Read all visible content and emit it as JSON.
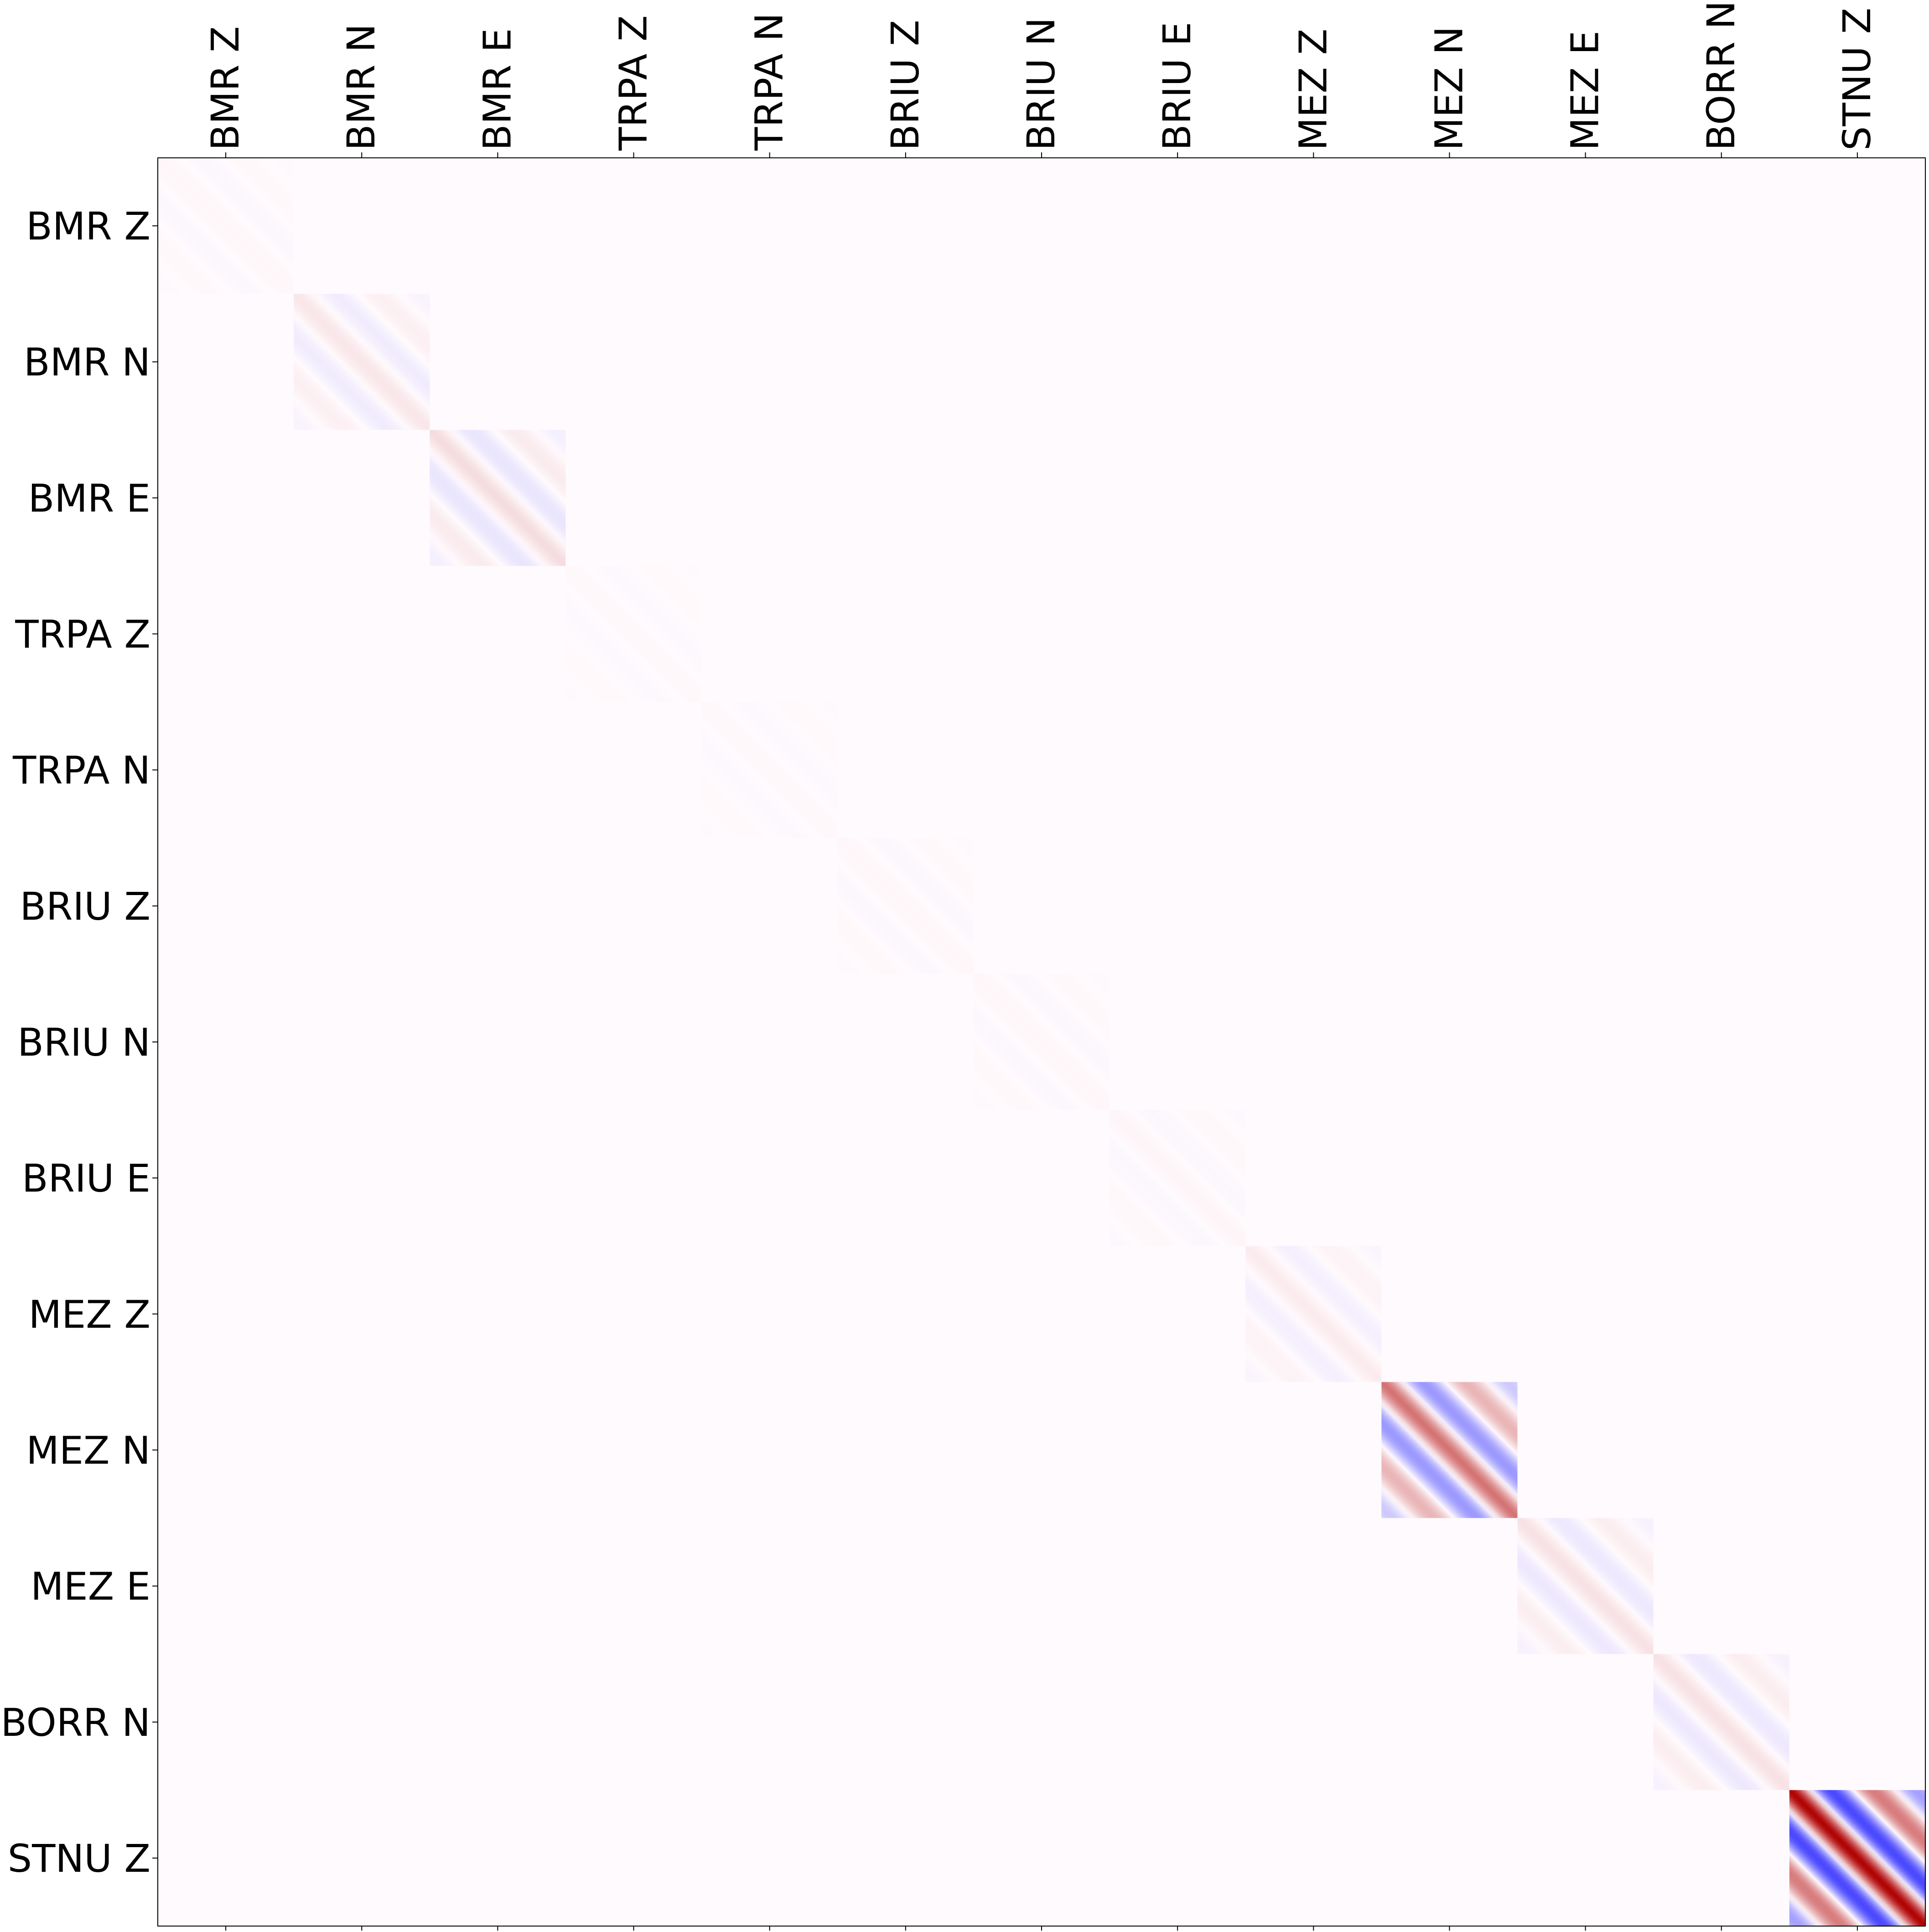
{
  "chart_data": {
    "type": "heatmap",
    "title": "",
    "xlabel": "",
    "ylabel": "",
    "x_tick_position": "top",
    "x_tick_rotation_deg": 90,
    "colormap": "seismic",
    "colors": {
      "negative": "#0000ff",
      "zero": "#fffafd",
      "positive": "#b00000",
      "axes_border": "#000000"
    },
    "labels": [
      "BMR Z",
      "BMR N",
      "BMR E",
      "TRPA Z",
      "TRPA N",
      "BRIU Z",
      "BRIU N",
      "BRIU E",
      "MEZ Z",
      "MEZ N",
      "MEZ E",
      "BORR N",
      "STNU Z"
    ],
    "value_range": [
      -1,
      1
    ],
    "block_structure": "block-diagonal; each diagonal block shows diagonal bands alternating in sign; off-diagonal blocks near zero",
    "blocks": [
      {
        "label": "BMR Z",
        "amplitude": 0.015,
        "contrast": "very faint"
      },
      {
        "label": "BMR N",
        "amplitude": 0.08,
        "contrast": "faint"
      },
      {
        "label": "BMR E",
        "amplitude": 0.12,
        "contrast": "faint"
      },
      {
        "label": "TRPA Z",
        "amplitude": 0.01,
        "contrast": "very faint"
      },
      {
        "label": "TRPA N",
        "amplitude": 0.01,
        "contrast": "very faint"
      },
      {
        "label": "BRIU Z",
        "amplitude": 0.015,
        "contrast": "very faint"
      },
      {
        "label": "BRIU N",
        "amplitude": 0.015,
        "contrast": "very faint"
      },
      {
        "label": "BRIU E",
        "amplitude": 0.02,
        "contrast": "very faint"
      },
      {
        "label": "MEZ Z",
        "amplitude": 0.06,
        "contrast": "faint"
      },
      {
        "label": "MEZ N",
        "amplitude": 0.55,
        "contrast": "strong"
      },
      {
        "label": "MEZ E",
        "amplitude": 0.1,
        "contrast": "faint"
      },
      {
        "label": "BORR N",
        "amplitude": 0.1,
        "contrast": "faint"
      },
      {
        "label": "STNU Z",
        "amplitude": 1.0,
        "contrast": "strongest"
      }
    ],
    "grid": false,
    "legend": "none"
  }
}
